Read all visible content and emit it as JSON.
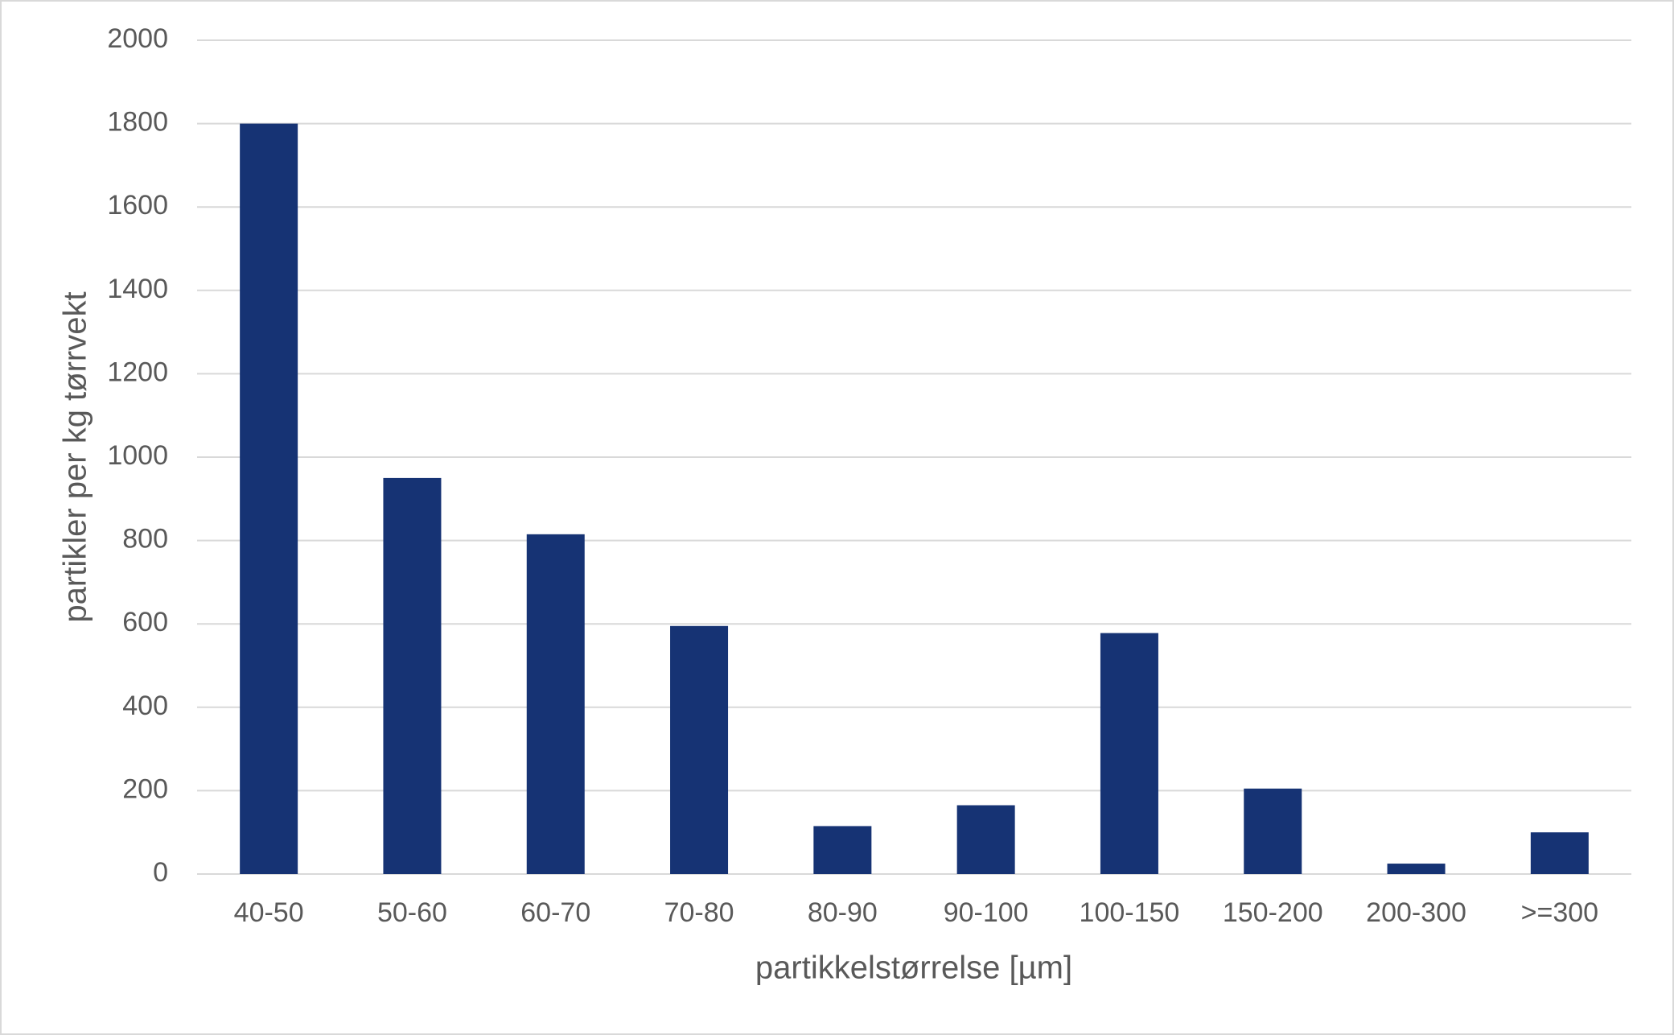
{
  "chart_data": {
    "type": "bar",
    "x_label": "partikkelstørrelse [µm]",
    "y_label": "partikler per kg tørrvekt",
    "categories": [
      "40-50",
      "50-60",
      "60-70",
      "70-80",
      "80-90",
      "90-100",
      "100-150",
      "150-200",
      "200-300",
      ">=300"
    ],
    "values": [
      1800,
      950,
      815,
      595,
      115,
      165,
      578,
      205,
      25,
      100
    ],
    "color": "#163374",
    "ylim": [
      0,
      2000
    ],
    "yticks": [
      0,
      200,
      400,
      600,
      800,
      1000,
      1200,
      1400,
      1600,
      1800,
      2000
    ],
    "grid": true
  }
}
